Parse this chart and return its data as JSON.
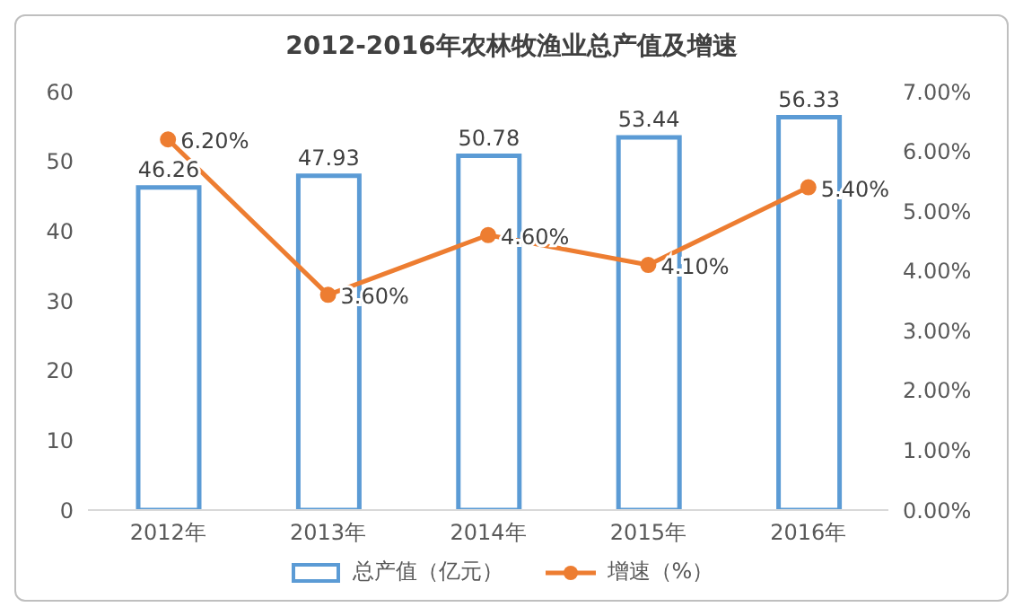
{
  "chart_data": {
    "type": "bar",
    "title": "2012-2016年农林牧渔业总产值及增速",
    "categories": [
      "2012年",
      "2013年",
      "2014年",
      "2015年",
      "2016年"
    ],
    "series": [
      {
        "name": "总产值（亿元）",
        "color": "#5b9bd5",
        "values": [
          46.26,
          47.93,
          50.78,
          53.44,
          56.33
        ],
        "value_labels": [
          "46.26",
          "47.93",
          "50.78",
          "53.44",
          "56.33"
        ]
      },
      {
        "name": "增速（%）",
        "type": "line",
        "axis": "y2",
        "color": "#ed7d31",
        "values": [
          6.2,
          3.6,
          4.6,
          4.1,
          5.4
        ],
        "value_labels": [
          "6.20%",
          "3.60%",
          "4.60%",
          "4.10%",
          "5.40%"
        ]
      }
    ],
    "ylim": [
      0,
      60
    ],
    "yticks": [
      0,
      10,
      20,
      30,
      40,
      50,
      60
    ],
    "y2lim": [
      0,
      7
    ],
    "y2ticks": [
      {
        "value": 0,
        "label": "0.00%"
      },
      {
        "value": 1,
        "label": "1.00%"
      },
      {
        "value": 2,
        "label": "2.00%"
      },
      {
        "value": 3,
        "label": "3.00%"
      },
      {
        "value": 4,
        "label": "4.00%"
      },
      {
        "value": 5,
        "label": "5.00%"
      },
      {
        "value": 6,
        "label": "6.00%"
      },
      {
        "value": 7,
        "label": "7.00%"
      }
    ],
    "grid": false,
    "legend": "bottom",
    "marker": "circle",
    "line_style": "solid"
  }
}
